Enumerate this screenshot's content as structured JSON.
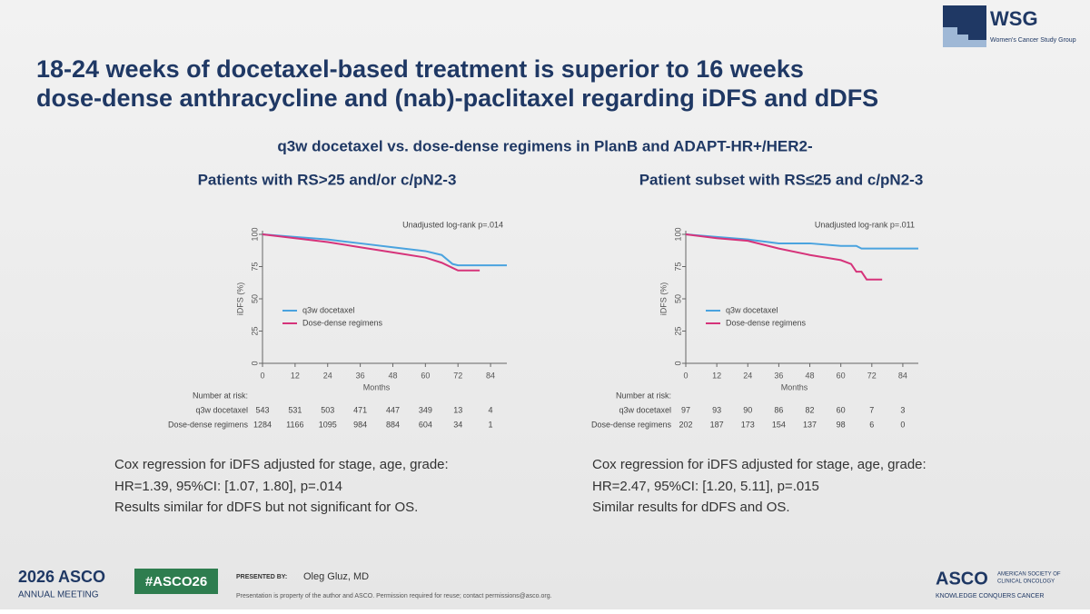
{
  "slide": {
    "logo": {
      "name": "WSG",
      "subtitle": "Women's Cancer Study Group"
    },
    "title": [
      "18-24 weeks of docetaxel-based treatment is superior to 16 weeks",
      "dose-dense anthracycline and (nab)-paclitaxel regarding iDFS and dDFS"
    ],
    "subtitle": "q3w docetaxel vs. dose-dense regimens in PlanB and ADAPT-HR+/HER2-",
    "conclusions": [
      [
        "Cox regression for iDFS adjusted for stage, age, grade:",
        "HR=1.39, 95%CI: [1.07, 1.80], p=.014",
        "Results similar for dDFS but not significant for OS."
      ],
      [
        "Cox regression for iDFS adjusted for stage, age, grade:",
        "HR=2.47, 95%CI: [1.20, 5.11], p=.015",
        "Similar results for dDFS and OS."
      ]
    ],
    "footer": {
      "year": "2026",
      "meeting": "ASCO",
      "meeting_sub": "ANNUAL MEETING",
      "hashtag": "#ASCO26",
      "presented_by": "PRESENTED BY:",
      "presenter": "Oleg Gluz, MD",
      "disclaimer": "Presentation is property of the author and ASCO. Permission required for reuse; contact permissions@asco.org.",
      "org": "ASCO",
      "org_name": [
        "AMERICAN SOCIETY OF",
        "CLINICAL ONCOLOGY"
      ],
      "tagline": "KNOWLEDGE CONQUERS CANCER"
    }
  },
  "chart_data": [
    {
      "type": "line",
      "title": "Patients with RS>25 and/or c/pN2-3",
      "annotation": "Unadjusted log-rank p=.014",
      "xlabel": "Months",
      "ylabel": "iDFS (%)",
      "x": [
        0,
        12,
        24,
        36,
        48,
        60,
        66,
        70,
        72,
        80,
        90
      ],
      "series": [
        {
          "name": "q3w docetaxel",
          "color": "#4aa3df",
          "values": [
            100,
            98,
            96,
            93,
            90,
            87,
            84,
            77,
            76,
            76,
            76
          ]
        },
        {
          "name": "Dose-dense regimens",
          "color": "#d6337a",
          "values": [
            100,
            97,
            94,
            90,
            86,
            82,
            78,
            74,
            72,
            72,
            null
          ]
        }
      ],
      "xlim": [
        0,
        90
      ],
      "xticks": [
        0,
        12,
        24,
        36,
        48,
        60,
        72,
        84
      ],
      "ylim": [
        0,
        100
      ],
      "yticks": [
        0,
        25,
        50,
        75,
        100
      ],
      "risk_table": {
        "title": "Number at risk:",
        "rows": [
          {
            "name": "q3w docetaxel",
            "values": [
              543,
              531,
              503,
              471,
              447,
              349,
              13,
              4
            ]
          },
          {
            "name": "Dose-dense regimens",
            "values": [
              1284,
              1166,
              1095,
              984,
              884,
              604,
              34,
              1
            ]
          }
        ]
      }
    },
    {
      "type": "line",
      "title": "Patient subset with RS≤25 and c/pN2-3",
      "annotation": "Unadjusted log-rank p=.011",
      "xlabel": "Months",
      "ylabel": "iDFS (%)",
      "x": [
        0,
        12,
        24,
        36,
        48,
        60,
        64,
        66,
        68,
        70,
        76,
        90
      ],
      "series": [
        {
          "name": "q3w docetaxel",
          "color": "#4aa3df",
          "values": [
            100,
            98,
            96,
            93,
            93,
            91,
            91,
            91,
            89,
            89,
            89,
            89
          ]
        },
        {
          "name": "Dose-dense regimens",
          "color": "#d6337a",
          "values": [
            100,
            97,
            95,
            89,
            84,
            80,
            77,
            71,
            71,
            65,
            65,
            null
          ]
        }
      ],
      "xlim": [
        0,
        90
      ],
      "xticks": [
        0,
        12,
        24,
        36,
        48,
        60,
        72,
        84
      ],
      "ylim": [
        0,
        100
      ],
      "yticks": [
        0,
        25,
        50,
        75,
        100
      ],
      "risk_table": {
        "title": "Number at risk:",
        "rows": [
          {
            "name": "q3w docetaxel",
            "values": [
              97,
              93,
              90,
              86,
              82,
              60,
              7,
              3
            ]
          },
          {
            "name": "Dose-dense regimens",
            "values": [
              202,
              187,
              173,
              154,
              137,
              98,
              6,
              0
            ]
          }
        ]
      }
    }
  ]
}
